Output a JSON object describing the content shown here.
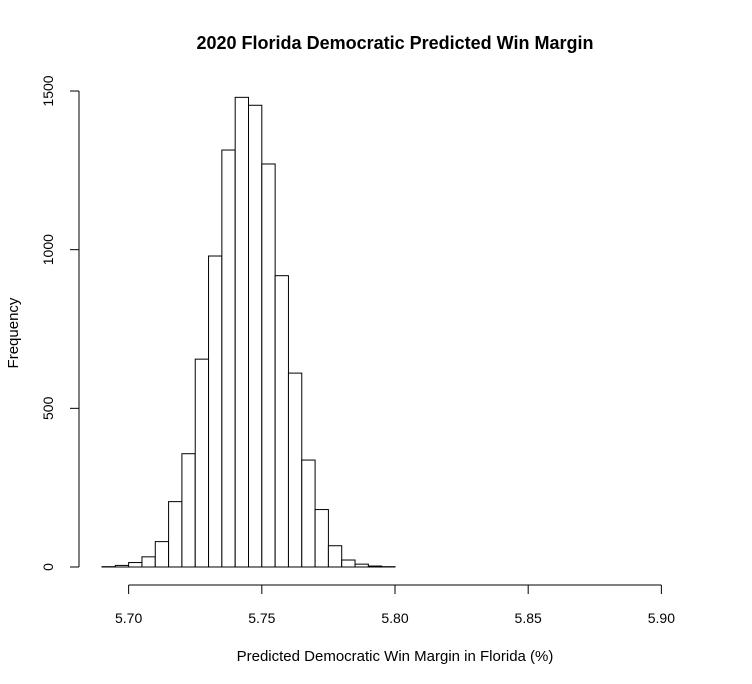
{
  "chart_data": {
    "type": "bar",
    "title": "2020 Florida Democratic Predicted Win Margin",
    "xlabel": "Predicted Democratic Win Margin in Florida (%)",
    "ylabel": "Frequency",
    "bin_width": 0.005,
    "bins_start": 5.69,
    "values": [
      1,
      5,
      14,
      32,
      80,
      206,
      357,
      655,
      980,
      1314,
      1480,
      1455,
      1270,
      918,
      611,
      337,
      181,
      67,
      22,
      9,
      3,
      1
    ],
    "xlim": [
      5.69,
      5.91
    ],
    "ylim": [
      0,
      1500
    ],
    "x_ticks": [
      "5.70",
      "5.75",
      "5.80",
      "5.85",
      "5.90"
    ],
    "x_tick_values": [
      5.7,
      5.75,
      5.8,
      5.85,
      5.9
    ],
    "y_ticks": [
      "0",
      "500",
      "1000",
      "1500"
    ],
    "y_tick_values": [
      0,
      500,
      1000,
      1500
    ],
    "grid": false
  }
}
